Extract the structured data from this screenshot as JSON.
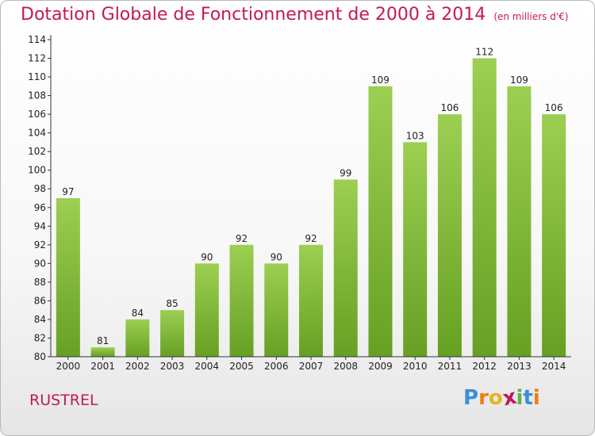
{
  "title": "Dotation Globale de Fonctionnement de 2000 à 2014",
  "subtitle": "(en milliers d'€)",
  "commune": "RUSTREL",
  "logo": {
    "letters": [
      "P",
      "r",
      "o",
      "x",
      "i",
      "t",
      "i"
    ],
    "colors": [
      "#3a8fd6",
      "#ef7d12",
      "#e3b51c",
      "#c2185b",
      "#5ab54b",
      "#3a8fd6",
      "#ef7d12"
    ]
  },
  "colors": {
    "bar_light": "#9ccf52",
    "bar_dark": "#66a023",
    "title": "#c2185b"
  },
  "chart_data": {
    "type": "bar",
    "categories": [
      "2000",
      "2001",
      "2002",
      "2003",
      "2004",
      "2005",
      "2006",
      "2007",
      "2008",
      "2009",
      "2010",
      "2011",
      "2012",
      "2013",
      "2014"
    ],
    "values": [
      97,
      81,
      84,
      85,
      90,
      92,
      90,
      92,
      99,
      109,
      103,
      106,
      112,
      109,
      106
    ],
    "title": "Dotation Globale de Fonctionnement de 2000 à 2014",
    "subtitle": "(en milliers d'€)",
    "ylim": [
      80,
      114
    ],
    "yticks": [
      80,
      82,
      84,
      86,
      88,
      90,
      92,
      94,
      96,
      98,
      100,
      102,
      104,
      106,
      108,
      110,
      112,
      114
    ],
    "grid": false,
    "legend": "none"
  }
}
